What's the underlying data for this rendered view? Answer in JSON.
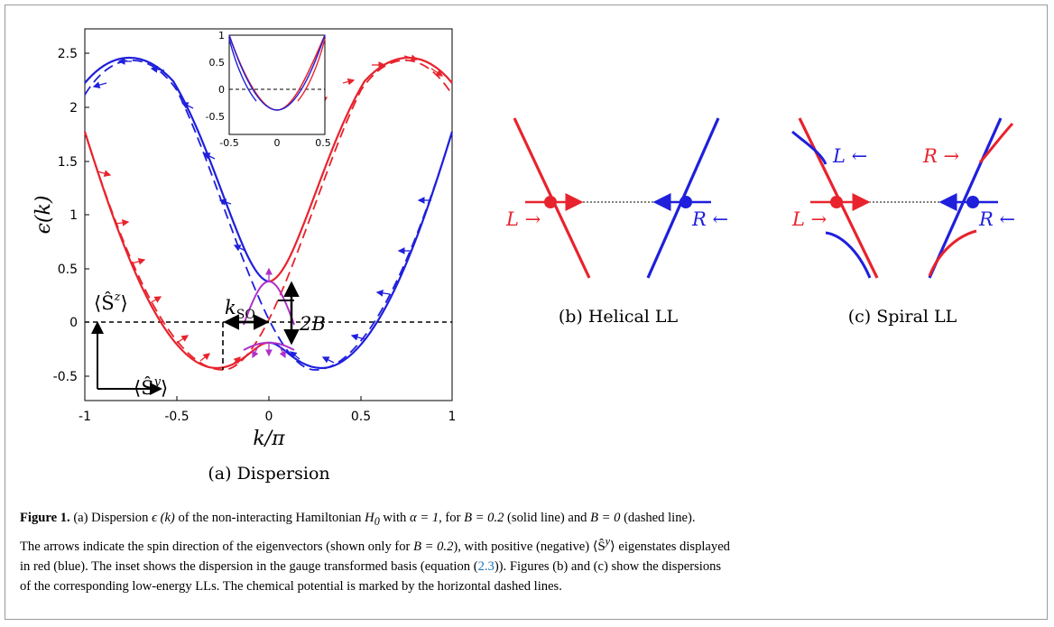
{
  "panel_a": {
    "ylabel": "ϵ(k)",
    "xlabel": "k/π",
    "subcaption": "(a) Dispersion",
    "x_ticks": [
      "-1",
      "-0.5",
      "0",
      "0.5",
      "1"
    ],
    "y_ticks": [
      "2.5",
      "2",
      "1.5",
      "1",
      "0.5",
      "0",
      "-0.5"
    ],
    "inset_x_ticks": [
      "-0.5",
      "0",
      "0.5"
    ],
    "inset_y_ticks": [
      "1",
      "0.5",
      "0",
      "-0.5"
    ],
    "annot_kso": "k",
    "annot_kso_sub": "SO",
    "annot_2b": "2B",
    "annot_sz": "⟨Ŝ",
    "annot_sz_sup": "z",
    "annot_sz_close": "⟩",
    "annot_sy": "⟨Ŝ",
    "annot_sy_sup": "y",
    "annot_sy_close": "⟩"
  },
  "panel_b": {
    "subcaption": "(b) Helical LL",
    "label_L": "L →",
    "label_R": "R ←"
  },
  "panel_c": {
    "subcaption": "(c) Spiral LL",
    "label_L_top": "L ←",
    "label_R_top": "R →",
    "label_L": "L →",
    "label_R": "R ←"
  },
  "colors": {
    "red": "#e8232d",
    "blue": "#1f1fdc",
    "magenta": "#b030c8"
  },
  "caption": {
    "fig_label": "Figure 1.",
    "seg1": " (a) Dispersion ",
    "seg2": " of the non-interacting Hamiltonian ",
    "seg3": " with ",
    "seg4": ", for ",
    "seg5": " (solid line) and ",
    "seg6": " (dashed line).",
    "line2": "The arrows indicate the spin direction of the eigenvectors (shown only for ",
    "line2b": "), with positive (negative) ",
    "line2c": " eigenstates displayed",
    "line3": "in red (blue). The inset shows the dispersion in the gauge transformed basis (equation (",
    "eq_ref": "2.3",
    "line3b": ")). Figures (b) and (c) show the dispersions",
    "line4": "of the corresponding low-energy LLs. The chemical potential is marked by the horizontal dashed lines.",
    "m_eps": "ϵ (k)",
    "m_H0": "H",
    "m_H0_sub": "0",
    "m_alpha": "α = 1",
    "m_B02": "B = 0.2",
    "m_B0": "B = 0",
    "m_B02b": "B = 0.2",
    "m_Sy": "⟨Ŝ",
    "m_Sy_sup": "y",
    "m_Sy_close": "⟩"
  }
}
